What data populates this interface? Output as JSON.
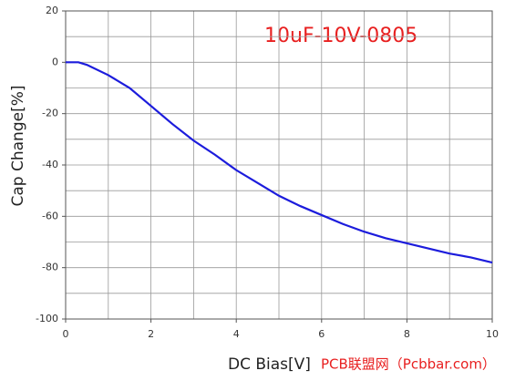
{
  "chart_data": {
    "type": "line",
    "annotation": "10uF-10V-0805",
    "watermark": "PCB联盟网（Pcbbar.com）",
    "x_label": "DC Bias[V]",
    "y_label": "Cap Change[%]",
    "x": [
      0,
      0.3,
      0.5,
      1,
      1.5,
      2,
      2.5,
      3,
      3.5,
      4,
      4.5,
      5,
      5.5,
      6,
      6.5,
      7,
      7.5,
      8,
      8.5,
      9,
      9.5,
      10
    ],
    "series": [
      {
        "color": "#1c1cdc",
        "values": [
          0,
          0,
          -1,
          -5,
          -10,
          -17,
          -24,
          -30.5,
          -36,
          -42,
          -47,
          -52,
          -56,
          -59.5,
          -63,
          -66,
          -68.5,
          -70.5,
          -72.5,
          -74.5,
          -76,
          -78
        ]
      }
    ],
    "xlim": [
      0,
      10
    ],
    "ylim": [
      -100,
      20
    ],
    "xticks": [
      0,
      2,
      4,
      6,
      8,
      10
    ],
    "yticks": [
      20,
      0,
      -20,
      -40,
      -60,
      -80,
      -100
    ],
    "x_grid": [
      1,
      2,
      3,
      4,
      5,
      6,
      7,
      8,
      9
    ],
    "y_grid": [
      10,
      0,
      -10,
      -20,
      -30,
      -40,
      -50,
      -60,
      -70,
      -80,
      -90
    ],
    "grid": true
  }
}
